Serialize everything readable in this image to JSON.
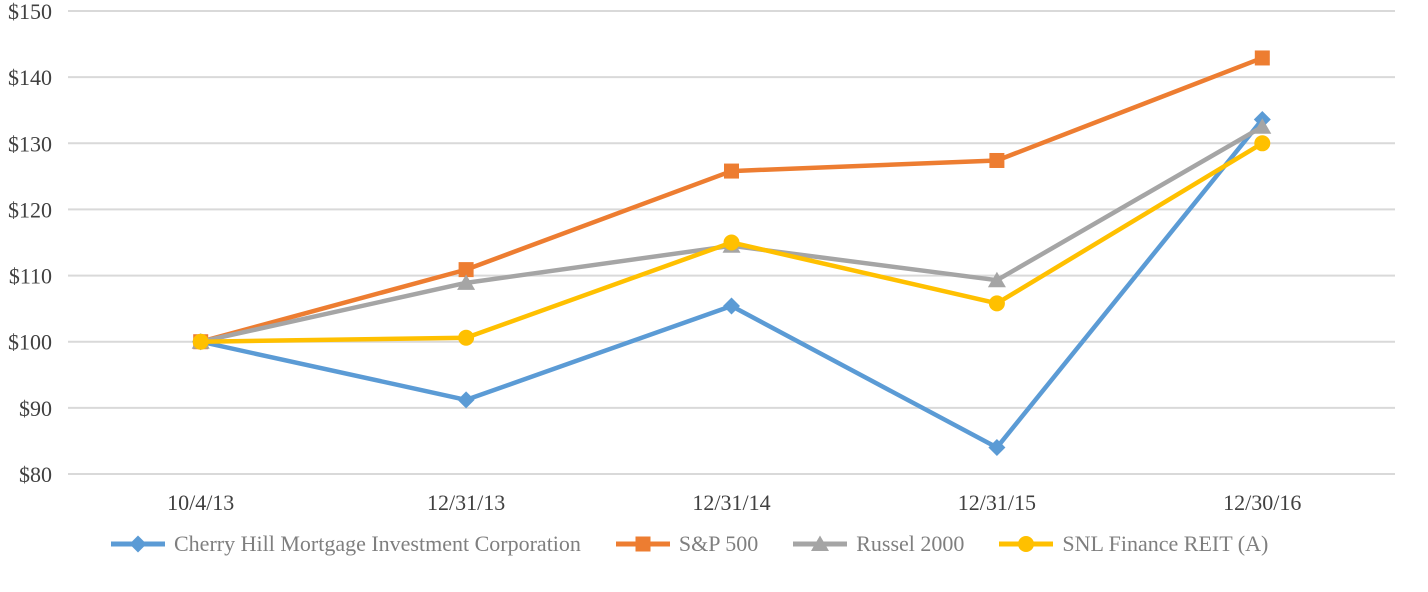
{
  "chart_data": {
    "type": "line",
    "title": "",
    "xlabel": "",
    "ylabel": "",
    "categories": [
      "10/4/13",
      "12/31/13",
      "12/31/14",
      "12/31/15",
      "12/30/16"
    ],
    "series": [
      {
        "name": "Cherry Hill Mortgage Investment Corporation",
        "color": "#5B9BD5",
        "marker": "diamond",
        "values": [
          100.0,
          91.2,
          105.4,
          84.0,
          133.6
        ]
      },
      {
        "name": "S&P 500",
        "color": "#ED7D31",
        "marker": "square",
        "values": [
          100.0,
          110.9,
          125.8,
          127.4,
          142.9
        ]
      },
      {
        "name": "Russel 2000",
        "color": "#A5A5A5",
        "marker": "triangle",
        "values": [
          100.0,
          108.9,
          114.5,
          109.3,
          132.5
        ]
      },
      {
        "name": "SNL Finance REIT (A)",
        "color": "#FFC000",
        "marker": "circle",
        "values": [
          100.0,
          100.6,
          115.0,
          105.8,
          130.0
        ]
      }
    ],
    "ylim": [
      80,
      150
    ],
    "y_tick_step": 10,
    "y_ticks": [
      {
        "value": 150,
        "label": "$150"
      },
      {
        "value": 140,
        "label": "$140"
      },
      {
        "value": 130,
        "label": "$130"
      },
      {
        "value": 120,
        "label": "$120"
      },
      {
        "value": 110,
        "label": "$110"
      },
      {
        "value": 100,
        "label": "$100"
      },
      {
        "value": 90,
        "label": "$90"
      },
      {
        "value": 80,
        "label": "$80"
      }
    ],
    "grid": "horizontal-only",
    "legend_position": "bottom",
    "colors": {
      "background": "#ffffff",
      "gridline": "#D9D9D9",
      "axis_label": "#404040",
      "legend_text": "#7f7f7f"
    }
  }
}
